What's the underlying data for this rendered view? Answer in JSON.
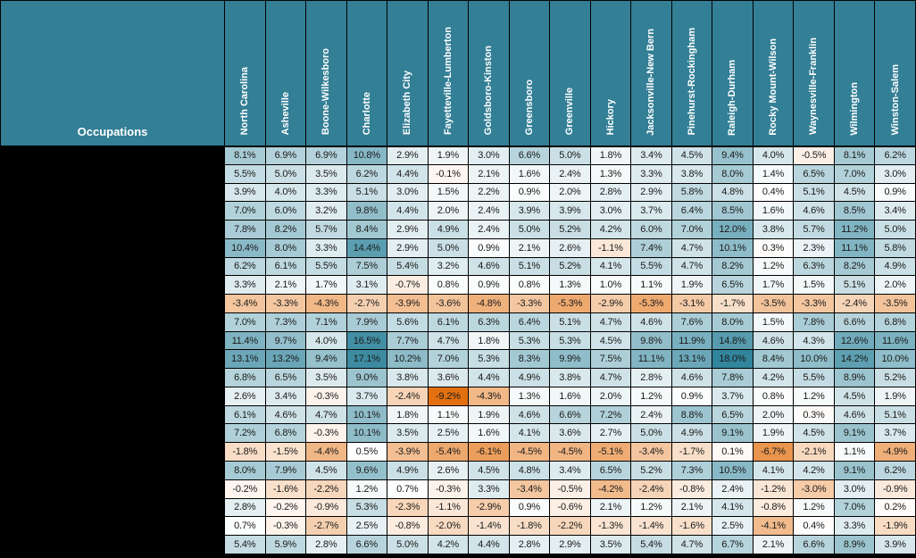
{
  "header": {
    "occupations_label": "Occupations"
  },
  "colors": {
    "header_bg": "#337F96",
    "header_text": "#FFFFFF",
    "row_label_bg": "#000000",
    "grid": "#000000",
    "cell_text": "#1A1A1A"
  },
  "chart_data": {
    "type": "heatmap",
    "title": "",
    "corner_label": "Occupations",
    "unit": "percent",
    "value_format": "one_decimal_percent",
    "row_labels_visible": false,
    "columns": [
      "North Carolina",
      "Asheville",
      "Boone-Wilkesboro",
      "Charlotte",
      "Elizabeth City",
      "Fayetteville-Lumberton",
      "Goldsboro-Kinston",
      "Greensboro",
      "Greenville",
      "Hickory",
      "Jacksonville-New Bern",
      "Pinehurst-Rockingham",
      "Raleigh-Durham",
      "Rocky Mount-Wilson",
      "Waynesville-Franklin",
      "Wilmington",
      "Winston-Salem"
    ],
    "rows": [
      {
        "label": "",
        "values": [
          8.1,
          6.9,
          6.9,
          10.8,
          2.9,
          1.9,
          3.0,
          6.6,
          5.0,
          1.8,
          3.4,
          4.5,
          9.4,
          4.0,
          -0.5,
          8.1,
          6.2
        ]
      },
      {
        "label": "",
        "values": [
          5.5,
          5.0,
          3.5,
          6.2,
          4.4,
          -0.1,
          2.1,
          1.6,
          2.4,
          1.3,
          3.3,
          3.8,
          8.0,
          1.4,
          6.5,
          7.0,
          3.0
        ]
      },
      {
        "label": "",
        "values": [
          3.9,
          4.0,
          3.3,
          5.1,
          3.0,
          1.5,
          2.2,
          0.9,
          2.0,
          2.8,
          2.9,
          5.8,
          4.8,
          0.4,
          5.1,
          4.5,
          0.9
        ]
      },
      {
        "label": "",
        "values": [
          7.0,
          6.0,
          3.2,
          9.8,
          4.4,
          2.0,
          2.4,
          3.9,
          3.9,
          3.0,
          3.7,
          6.4,
          8.5,
          1.6,
          4.6,
          8.5,
          3.4
        ]
      },
      {
        "label": "",
        "values": [
          7.8,
          8.2,
          5.7,
          8.4,
          2.9,
          4.9,
          2.4,
          5.0,
          5.2,
          4.2,
          6.0,
          7.0,
          12.0,
          3.8,
          5.7,
          11.2,
          5.0
        ]
      },
      {
        "label": "",
        "values": [
          10.4,
          8.0,
          3.3,
          14.4,
          2.9,
          5.0,
          0.9,
          2.1,
          2.6,
          -1.1,
          7.4,
          4.7,
          10.1,
          0.3,
          2.3,
          11.1,
          5.8
        ]
      },
      {
        "label": "",
        "values": [
          6.2,
          6.1,
          5.5,
          7.5,
          5.4,
          3.2,
          4.6,
          5.1,
          5.2,
          4.1,
          5.5,
          4.7,
          8.2,
          1.2,
          6.3,
          8.2,
          4.9
        ]
      },
      {
        "label": "",
        "values": [
          3.3,
          2.1,
          1.7,
          3.1,
          -0.7,
          0.8,
          0.9,
          0.8,
          1.3,
          1.0,
          1.1,
          1.9,
          6.5,
          1.7,
          1.5,
          5.1,
          2.0
        ]
      },
      {
        "label": "",
        "values": [
          -3.4,
          -3.3,
          -4.3,
          -2.7,
          -3.9,
          -3.6,
          -4.8,
          -3.3,
          -5.3,
          -2.9,
          -5.3,
          -3.1,
          -1.7,
          -3.5,
          -3.3,
          -2.4,
          -3.5
        ]
      },
      {
        "label": "",
        "values": [
          7.0,
          7.3,
          7.1,
          7.9,
          5.6,
          6.1,
          6.3,
          6.4,
          5.1,
          4.7,
          4.6,
          7.6,
          8.0,
          1.5,
          7.8,
          6.6,
          6.8
        ]
      },
      {
        "label": "",
        "values": [
          11.4,
          9.7,
          4.0,
          16.5,
          7.7,
          4.7,
          1.8,
          5.3,
          5.3,
          4.5,
          9.8,
          11.9,
          14.8,
          4.6,
          4.3,
          12.6,
          11.6
        ]
      },
      {
        "label": "",
        "values": [
          13.1,
          13.2,
          9.4,
          17.1,
          10.2,
          7.0,
          5.3,
          8.3,
          9.9,
          7.5,
          11.1,
          13.1,
          18.0,
          8.4,
          10.0,
          14.2,
          10.0
        ]
      },
      {
        "label": "",
        "values": [
          6.8,
          6.5,
          3.5,
          9.0,
          3.8,
          3.6,
          4.4,
          4.9,
          3.8,
          4.7,
          2.8,
          4.6,
          7.8,
          4.2,
          5.5,
          8.9,
          5.2
        ]
      },
      {
        "label": "",
        "values": [
          2.6,
          3.4,
          -0.3,
          3.7,
          -2.4,
          -9.2,
          -4.3,
          1.3,
          1.6,
          2.0,
          1.2,
          0.9,
          3.7,
          0.8,
          1.2,
          4.5,
          1.9
        ]
      },
      {
        "label": "",
        "values": [
          6.1,
          4.6,
          4.7,
          10.1,
          1.8,
          1.1,
          1.9,
          4.6,
          6.6,
          7.2,
          2.4,
          8.8,
          6.5,
          2.0,
          0.3,
          4.6,
          5.1
        ]
      },
      {
        "label": "",
        "values": [
          7.2,
          6.8,
          -0.3,
          10.1,
          3.5,
          2.5,
          1.6,
          4.1,
          3.6,
          2.7,
          5.0,
          4.9,
          9.1,
          1.9,
          4.5,
          9.1,
          3.7
        ]
      },
      {
        "label": "",
        "values": [
          -1.8,
          -1.5,
          -4.4,
          0.5,
          -3.9,
          -5.4,
          -6.1,
          -4.5,
          -4.5,
          -5.1,
          -3.4,
          -1.7,
          0.1,
          -6.7,
          -2.1,
          1.1,
          -4.9
        ]
      },
      {
        "label": "",
        "values": [
          8.0,
          7.9,
          4.5,
          9.6,
          4.9,
          2.6,
          4.5,
          4.8,
          3.4,
          6.5,
          5.2,
          7.3,
          10.5,
          4.1,
          4.2,
          9.1,
          6.2
        ]
      },
      {
        "label": "",
        "values": [
          -0.2,
          -1.6,
          -2.2,
          1.2,
          0.7,
          -0.3,
          3.3,
          -3.4,
          -0.5,
          -4.2,
          -2.4,
          -0.8,
          2.4,
          -1.2,
          -3.0,
          3.0,
          -0.9
        ]
      },
      {
        "label": "",
        "values": [
          2.8,
          -0.2,
          -0.9,
          5.3,
          -2.3,
          -1.1,
          -2.9,
          0.9,
          -0.6,
          2.1,
          1.2,
          2.1,
          4.1,
          -0.8,
          1.2,
          7.0,
          0.2
        ]
      },
      {
        "label": "",
        "values": [
          0.7,
          -0.3,
          -2.7,
          2.5,
          -0.8,
          -2.0,
          -1.4,
          -1.8,
          -2.2,
          -1.3,
          -1.4,
          -1.6,
          2.5,
          -4.1,
          0.4,
          3.3,
          -1.9
        ]
      },
      {
        "label": "",
        "values": [
          5.4,
          5.9,
          2.8,
          6.6,
          5.0,
          4.2,
          4.4,
          2.8,
          2.9,
          3.5,
          5.4,
          4.7,
          6.7,
          2.1,
          6.6,
          8.9,
          3.9
        ]
      }
    ],
    "color_scale": {
      "min_color": "#E2700F",
      "mid_color": "#FFFFFF",
      "max_color": "#31859C",
      "min_value": -9.2,
      "mid_value": 0.5,
      "max_value": 18.0
    },
    "legend": "none",
    "xlabel": "",
    "ylabel": ""
  }
}
